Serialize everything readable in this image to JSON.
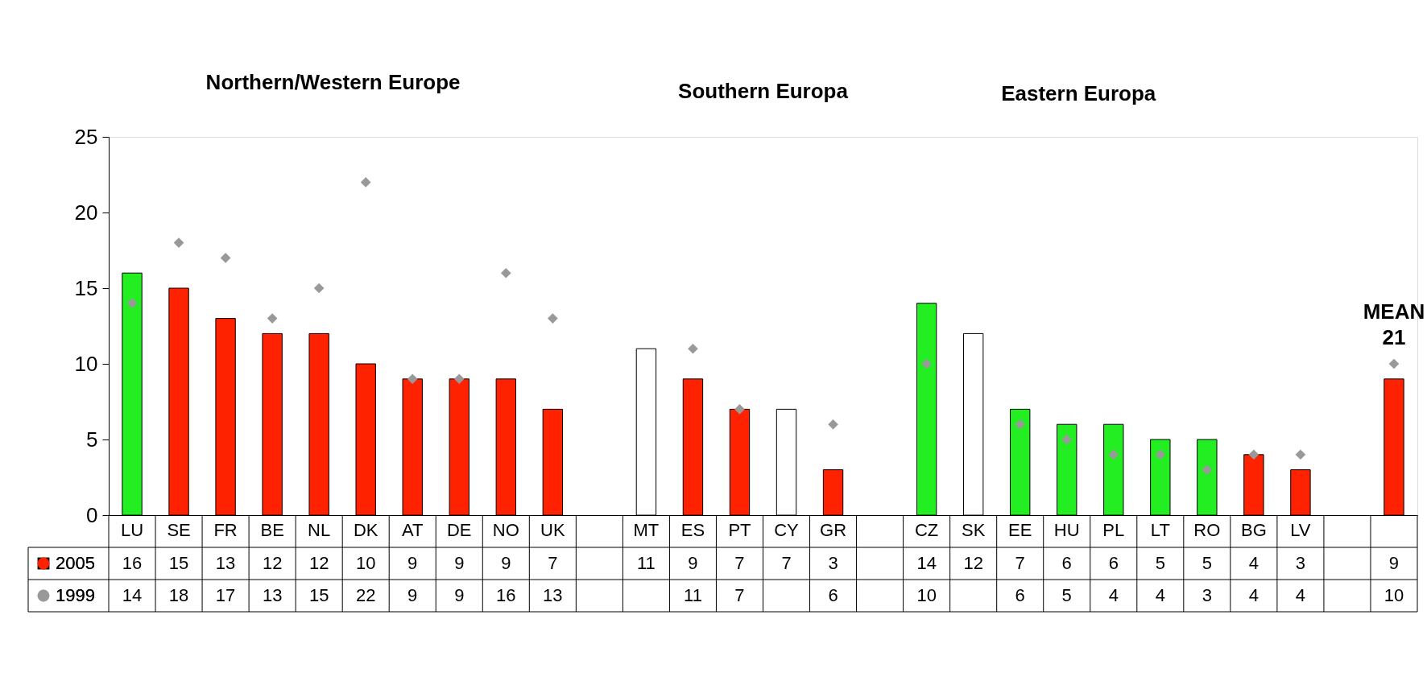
{
  "chart_data": {
    "type": "bar",
    "categories": [
      "LU",
      "SE",
      "FR",
      "BE",
      "NL",
      "DK",
      "AT",
      "DE",
      "NO",
      "UK",
      null,
      "MT",
      "ES",
      "PT",
      "CY",
      "GR",
      null,
      "CZ",
      "SK",
      "EE",
      "HU",
      "PL",
      "LT",
      "RO",
      "BG",
      "LV",
      null,
      null
    ],
    "series": [
      {
        "name": "2005",
        "color": "#ff2200",
        "values": [
          16,
          15,
          13,
          12,
          12,
          10,
          9,
          9,
          9,
          7,
          null,
          11,
          9,
          7,
          7,
          3,
          null,
          14,
          12,
          7,
          6,
          6,
          5,
          5,
          4,
          3,
          null,
          9
        ],
        "colors": [
          "#22ee22",
          "#ff2200",
          "#ff2200",
          "#ff2200",
          "#ff2200",
          "#ff2200",
          "#ff2200",
          "#ff2200",
          "#ff2200",
          "#ff2200",
          null,
          "#ffffff",
          "#ff2200",
          "#ff2200",
          "#ffffff",
          "#ff2200",
          null,
          "#22ee22",
          "#ffffff",
          "#22ee22",
          "#22ee22",
          "#22ee22",
          "#22ee22",
          "#22ee22",
          "#ff2200",
          "#ff2200",
          null,
          "#ff2200"
        ]
      },
      {
        "name": "1999",
        "type": "scatter",
        "color": "#999999",
        "marker": "diamond",
        "values": [
          14,
          18,
          17,
          13,
          15,
          22,
          9,
          9,
          16,
          13,
          null,
          null,
          11,
          7,
          null,
          6,
          null,
          10,
          null,
          6,
          5,
          4,
          4,
          3,
          4,
          4,
          null,
          10
        ]
      }
    ],
    "ylim": [
      0,
      25
    ],
    "yticks": [
      0,
      5,
      10,
      15,
      20,
      25
    ],
    "grid": false,
    "legend": "bottom left",
    "data_labels": true,
    "annotations": [
      "Northern/Western Europe",
      "Southern Europa",
      "Eastern Europa",
      "MEAN\n21"
    ]
  }
}
